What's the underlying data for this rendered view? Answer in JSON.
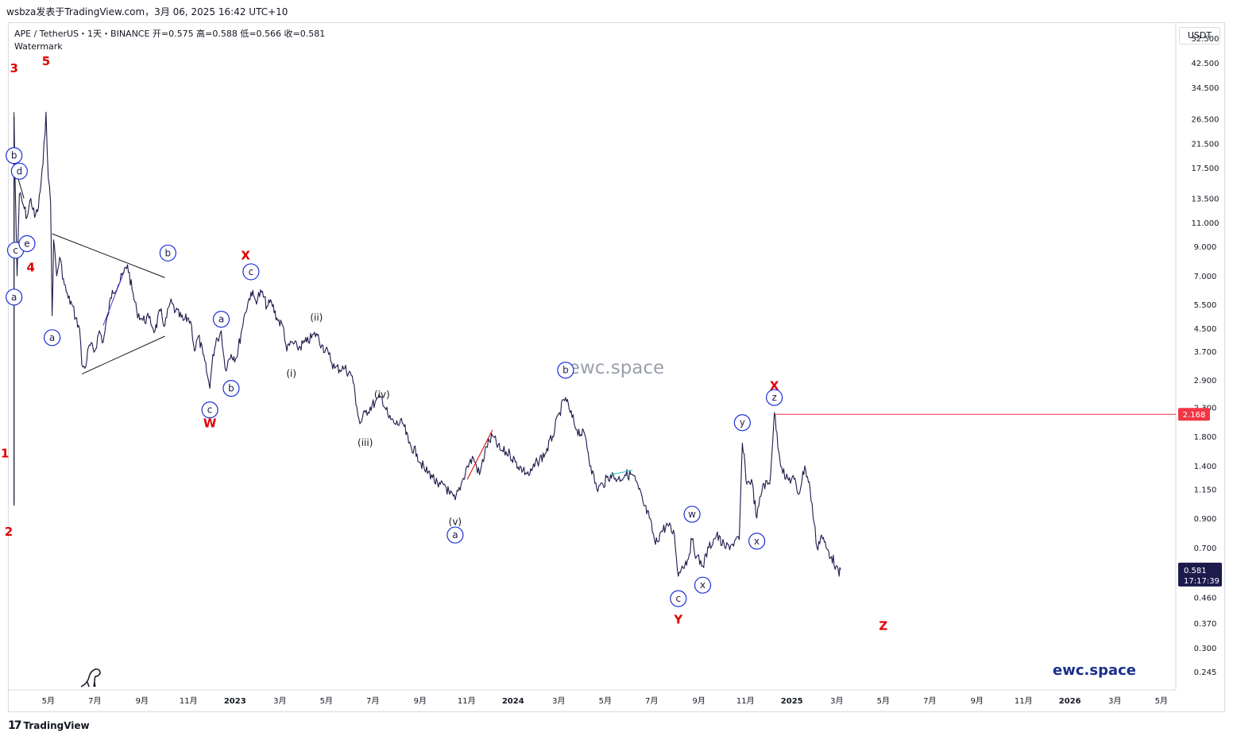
{
  "header": {
    "publish_line": "wsbza发表于TradingView.com，3月 06, 2025 16:42 UTC+10"
  },
  "legend": {
    "symbol_line": "APE / TetherUS・1天・BINANCE  开=0.575  高=0.588  低=0.566  收=0.581",
    "watermark_label": "Watermark"
  },
  "currency_button": "USDT",
  "watermark_center": "ewc.space",
  "brand_bottom": "ewc.space",
  "footer": {
    "logo_text": "TradingView",
    "logo_glyph": "17"
  },
  "colors": {
    "candle": "#1d1b4b",
    "red_label": "#e00000",
    "circle_label": "#1a2fd6",
    "price_line": "#f23645",
    "current_price_bg": "#1d1b4b",
    "brand_blue": "#1a2f8f",
    "cyan_line": "#27c4c4"
  },
  "chart_data": {
    "type": "line",
    "symbol": "APE / TetherUS",
    "interval": "1天",
    "exchange": "BINANCE",
    "ohlc": {
      "open": 0.575,
      "high": 0.588,
      "low": 0.566,
      "close": 0.581
    },
    "y_scale": "log",
    "ylim": [
      0.21,
      60
    ],
    "y_ticks": [
      "52.500",
      "42.500",
      "34.500",
      "26.500",
      "21.500",
      "17.500",
      "13.500",
      "11.000",
      "9.000",
      "7.000",
      "5.500",
      "4.500",
      "3.700",
      "2.900",
      "2.300",
      "1.800",
      "1.400",
      "1.150",
      "0.900",
      "0.700",
      "0.460",
      "0.370",
      "0.300",
      "0.245"
    ],
    "y_tick_values": [
      52.5,
      42.5,
      34.5,
      26.5,
      21.5,
      17.5,
      13.5,
      11.0,
      9.0,
      7.0,
      5.5,
      4.5,
      3.7,
      2.9,
      2.3,
      1.8,
      1.4,
      1.15,
      0.9,
      0.7,
      0.46,
      0.37,
      0.3,
      0.245
    ],
    "x_ticks": [
      "5月",
      "7月",
      "9月",
      "11月",
      "2023",
      "3月",
      "5月",
      "7月",
      "9月",
      "11月",
      "2024",
      "3月",
      "5月",
      "7月",
      "9月",
      "11月",
      "2025",
      "3月",
      "5月",
      "7月",
      "9月",
      "11月",
      "2026",
      "3月",
      "5月"
    ],
    "x_tick_dates": [
      "2022-05-01",
      "2022-07-01",
      "2022-09-01",
      "2022-11-01",
      "2023-01-01",
      "2023-03-01",
      "2023-05-01",
      "2023-07-01",
      "2023-09-01",
      "2023-11-01",
      "2024-01-01",
      "2024-03-01",
      "2024-05-01",
      "2024-07-01",
      "2024-09-01",
      "2024-11-01",
      "2025-01-01",
      "2025-03-01",
      "2025-05-01",
      "2025-07-01",
      "2025-09-01",
      "2025-11-01",
      "2026-01-01",
      "2026-03-01",
      "2026-05-01"
    ],
    "xlim": [
      "2022-03-09",
      "2026-05-20"
    ],
    "price_path": [
      [
        "2022-03-17",
        1.0
      ],
      [
        "2022-03-17",
        27.0
      ],
      [
        "2022-03-18",
        18.0
      ],
      [
        "2022-03-21",
        7.0
      ],
      [
        "2022-03-24",
        14.0
      ],
      [
        "2022-03-28",
        13.0
      ],
      [
        "2022-04-03",
        11.5
      ],
      [
        "2022-04-08",
        13.5
      ],
      [
        "2022-04-13",
        11.5
      ],
      [
        "2022-04-18",
        12.5
      ],
      [
        "2022-04-24",
        18.0
      ],
      [
        "2022-04-28",
        28.0
      ],
      [
        "2022-05-01",
        16.0
      ],
      [
        "2022-05-04",
        13.0
      ],
      [
        "2022-05-06",
        5.0
      ],
      [
        "2022-05-08",
        9.5
      ],
      [
        "2022-05-12",
        7.0
      ],
      [
        "2022-05-16",
        8.2
      ],
      [
        "2022-05-22",
        6.5
      ],
      [
        "2022-05-27",
        5.8
      ],
      [
        "2022-06-01",
        5.5
      ],
      [
        "2022-06-06",
        4.9
      ],
      [
        "2022-06-11",
        4.5
      ],
      [
        "2022-06-14",
        3.3
      ],
      [
        "2022-06-18",
        3.2
      ],
      [
        "2022-06-24",
        3.9
      ],
      [
        "2022-07-01",
        3.7
      ],
      [
        "2022-07-07",
        4.4
      ],
      [
        "2022-07-12",
        4.0
      ],
      [
        "2022-07-18",
        5.0
      ],
      [
        "2022-07-24",
        6.2
      ],
      [
        "2022-08-01",
        6.5
      ],
      [
        "2022-08-08",
        7.2
      ],
      [
        "2022-08-13",
        7.7
      ],
      [
        "2022-08-19",
        6.2
      ],
      [
        "2022-08-25",
        5.2
      ],
      [
        "2022-09-02",
        4.8
      ],
      [
        "2022-09-10",
        4.9
      ],
      [
        "2022-09-18",
        4.4
      ],
      [
        "2022-09-25",
        5.2
      ],
      [
        "2022-10-01",
        4.6
      ],
      [
        "2022-10-08",
        5.6
      ],
      [
        "2022-10-15",
        5.2
      ],
      [
        "2022-10-25",
        4.8
      ],
      [
        "2022-11-01",
        4.9
      ],
      [
        "2022-11-05",
        4.6
      ],
      [
        "2022-11-09",
        3.7
      ],
      [
        "2022-11-14",
        4.2
      ],
      [
        "2022-11-20",
        3.6
      ],
      [
        "2022-11-26",
        3.0
      ],
      [
        "2022-11-29",
        2.7
      ],
      [
        "2022-12-03",
        3.6
      ],
      [
        "2022-12-09",
        4.1
      ],
      [
        "2022-12-14",
        4.4
      ],
      [
        "2022-12-19",
        3.2
      ],
      [
        "2022-12-27",
        3.6
      ],
      [
        "2023-01-03",
        3.5
      ],
      [
        "2023-01-09",
        4.3
      ],
      [
        "2023-01-14",
        5.1
      ],
      [
        "2023-01-22",
        6.1
      ],
      [
        "2023-01-28",
        5.7
      ],
      [
        "2023-02-05",
        6.1
      ],
      [
        "2023-02-12",
        5.4
      ],
      [
        "2023-02-18",
        5.6
      ],
      [
        "2023-02-25",
        4.9
      ],
      [
        "2023-03-06",
        4.5
      ],
      [
        "2023-03-10",
        3.7
      ],
      [
        "2023-03-16",
        4.0
      ],
      [
        "2023-03-24",
        3.8
      ],
      [
        "2023-04-05",
        4.0
      ],
      [
        "2023-04-18",
        4.3
      ],
      [
        "2023-04-25",
        3.9
      ],
      [
        "2023-05-04",
        3.6
      ],
      [
        "2023-05-12",
        3.2
      ],
      [
        "2023-05-25",
        3.2
      ],
      [
        "2023-06-04",
        3.0
      ],
      [
        "2023-06-10",
        2.3
      ],
      [
        "2023-06-14",
        2.0
      ],
      [
        "2023-06-21",
        2.2
      ],
      [
        "2023-07-04",
        2.4
      ],
      [
        "2023-07-13",
        2.5
      ],
      [
        "2023-07-22",
        2.1
      ],
      [
        "2023-07-30",
        2.0
      ],
      [
        "2023-08-10",
        2.0
      ],
      [
        "2023-08-17",
        1.7
      ],
      [
        "2023-08-28",
        1.55
      ],
      [
        "2023-09-07",
        1.35
      ],
      [
        "2023-09-16",
        1.3
      ],
      [
        "2023-09-25",
        1.17
      ],
      [
        "2023-10-03",
        1.2
      ],
      [
        "2023-10-10",
        1.1
      ],
      [
        "2023-10-17",
        1.05
      ],
      [
        "2023-10-25",
        1.2
      ],
      [
        "2023-11-02",
        1.4
      ],
      [
        "2023-11-10",
        1.5
      ],
      [
        "2023-11-18",
        1.3
      ],
      [
        "2023-11-27",
        1.65
      ],
      [
        "2023-12-05",
        1.8
      ],
      [
        "2023-12-15",
        1.6
      ],
      [
        "2023-12-28",
        1.55
      ],
      [
        "2024-01-04",
        1.45
      ],
      [
        "2024-01-14",
        1.35
      ],
      [
        "2024-01-23",
        1.3
      ],
      [
        "2024-02-02",
        1.45
      ],
      [
        "2024-02-12",
        1.55
      ],
      [
        "2024-02-22",
        1.8
      ],
      [
        "2024-03-02",
        2.2
      ],
      [
        "2024-03-10",
        2.5
      ],
      [
        "2024-03-16",
        2.2
      ],
      [
        "2024-03-25",
        1.9
      ],
      [
        "2024-04-05",
        1.8
      ],
      [
        "2024-04-12",
        1.4
      ],
      [
        "2024-04-20",
        1.15
      ],
      [
        "2024-04-28",
        1.2
      ],
      [
        "2024-05-08",
        1.3
      ],
      [
        "2024-05-18",
        1.25
      ],
      [
        "2024-05-27",
        1.3
      ],
      [
        "2024-06-06",
        1.3
      ],
      [
        "2024-06-14",
        1.15
      ],
      [
        "2024-06-21",
        1.0
      ],
      [
        "2024-06-28",
        0.9
      ],
      [
        "2024-07-06",
        0.72
      ],
      [
        "2024-07-13",
        0.8
      ],
      [
        "2024-07-22",
        0.85
      ],
      [
        "2024-07-31",
        0.78
      ],
      [
        "2024-08-05",
        0.55
      ],
      [
        "2024-08-10",
        0.6
      ],
      [
        "2024-08-17",
        0.63
      ],
      [
        "2024-08-23",
        0.75
      ],
      [
        "2024-08-29",
        0.65
      ],
      [
        "2024-09-06",
        0.6
      ],
      [
        "2024-09-14",
        0.7
      ],
      [
        "2024-09-24",
        0.78
      ],
      [
        "2024-10-05",
        0.7
      ],
      [
        "2024-10-14",
        0.72
      ],
      [
        "2024-10-24",
        0.75
      ],
      [
        "2024-10-28",
        1.7
      ],
      [
        "2024-11-03",
        1.2
      ],
      [
        "2024-11-09",
        1.25
      ],
      [
        "2024-11-16",
        0.9
      ],
      [
        "2024-11-24",
        1.2
      ],
      [
        "2024-12-03",
        1.2
      ],
      [
        "2024-12-09",
        2.2
      ],
      [
        "2024-12-16",
        1.5
      ],
      [
        "2024-12-24",
        1.25
      ],
      [
        "2025-01-04",
        1.25
      ],
      [
        "2025-01-10",
        1.1
      ],
      [
        "2025-01-18",
        1.4
      ],
      [
        "2025-01-25",
        1.15
      ],
      [
        "2025-02-03",
        0.7
      ],
      [
        "2025-02-09",
        0.78
      ],
      [
        "2025-02-15",
        0.7
      ],
      [
        "2025-02-22",
        0.65
      ],
      [
        "2025-02-28",
        0.6
      ],
      [
        "2025-03-04",
        0.55
      ],
      [
        "2025-03-06",
        0.581
      ]
    ],
    "current_price": "0.581",
    "countdown": "17:17:39",
    "horizontal_level": {
      "value": 2.168,
      "label": "2.168",
      "from": "2024-12-09"
    },
    "wave_labels_red": [
      {
        "text": "3",
        "date": "2022-03-17",
        "price": 40.5
      },
      {
        "text": "5",
        "date": "2022-04-28",
        "price": 43.0
      },
      {
        "text": "4",
        "date": "2022-04-08",
        "price": 7.5
      },
      {
        "text": "1",
        "date": "2022-03-05",
        "price": 1.55
      },
      {
        "text": "2",
        "date": "2022-03-10",
        "price": 0.8
      },
      {
        "text": "X",
        "date": "2023-01-15",
        "price": 8.3
      },
      {
        "text": "W",
        "date": "2022-11-29",
        "price": 2.0
      },
      {
        "text": "Y",
        "date": "2024-08-05",
        "price": 0.38
      },
      {
        "text": "X",
        "date": "2024-12-09",
        "price": 2.75
      },
      {
        "text": "Z",
        "date": "2025-05-01",
        "price": 0.36
      }
    ],
    "wave_labels_circled": [
      {
        "text": "b",
        "date": "2022-03-17",
        "price": 19.4
      },
      {
        "text": "d",
        "date": "2022-03-24",
        "price": 17.0
      },
      {
        "text": "c",
        "date": "2022-03-19",
        "price": 8.7
      },
      {
        "text": "e",
        "date": "2022-04-03",
        "price": 9.2
      },
      {
        "text": "a",
        "date": "2022-03-17",
        "price": 5.85
      },
      {
        "text": "a",
        "date": "2022-05-06",
        "price": 4.15
      },
      {
        "text": "b",
        "date": "2022-10-05",
        "price": 8.5
      },
      {
        "text": "c",
        "date": "2022-11-29",
        "price": 2.25
      },
      {
        "text": "a",
        "date": "2022-12-14",
        "price": 4.85
      },
      {
        "text": "b",
        "date": "2022-12-27",
        "price": 2.7
      },
      {
        "text": "c",
        "date": "2023-01-22",
        "price": 7.25
      },
      {
        "text": "a",
        "date": "2023-10-17",
        "price": 0.78
      },
      {
        "text": "b",
        "date": "2024-03-10",
        "price": 3.15
      },
      {
        "text": "c",
        "date": "2024-08-05",
        "price": 0.455
      },
      {
        "text": "w",
        "date": "2024-08-23",
        "price": 0.93
      },
      {
        "text": "x",
        "date": "2024-09-06",
        "price": 0.51
      },
      {
        "text": "y",
        "date": "2024-10-28",
        "price": 2.02
      },
      {
        "text": "x",
        "date": "2024-11-16",
        "price": 0.74
      },
      {
        "text": "z",
        "date": "2024-12-09",
        "price": 2.5
      }
    ],
    "wave_labels_roman": [
      {
        "text": "(ii)",
        "date": "2023-04-18",
        "price": 4.9
      },
      {
        "text": "(i)",
        "date": "2023-03-16",
        "price": 3.05
      },
      {
        "text": "(iv)",
        "date": "2023-07-13",
        "price": 2.55
      },
      {
        "text": "(iii)",
        "date": "2023-06-21",
        "price": 1.7
      },
      {
        "text": "(v)",
        "date": "2023-10-17",
        "price": 0.87
      }
    ],
    "trendlines": [
      {
        "color": "#131722",
        "points": [
          [
            "2022-05-06",
            10.0
          ],
          [
            "2022-10-01",
            6.9
          ]
        ]
      },
      {
        "color": "#131722",
        "points": [
          [
            "2022-06-14",
            3.05
          ],
          [
            "2022-10-01",
            4.2
          ]
        ]
      },
      {
        "color": "#131722",
        "points": [
          [
            "2022-03-17",
            18.0
          ],
          [
            "2022-03-30",
            13.5
          ]
        ]
      },
      {
        "color": "#3b3bd6",
        "points": [
          [
            "2022-07-12",
            4.6
          ],
          [
            "2022-08-08",
            7.2
          ]
        ]
      },
      {
        "color": "#e00000",
        "points": [
          [
            "2023-11-02",
            1.25
          ],
          [
            "2023-12-05",
            1.9
          ]
        ]
      },
      {
        "color": "#27c4c4",
        "points": [
          [
            "2024-05-08",
            1.3
          ],
          [
            "2024-06-06",
            1.35
          ]
        ]
      },
      {
        "color": "#131722",
        "points": [
          [
            "2022-03-17",
            1.02
          ],
          [
            "2022-03-17",
            28.0
          ]
        ]
      }
    ]
  }
}
